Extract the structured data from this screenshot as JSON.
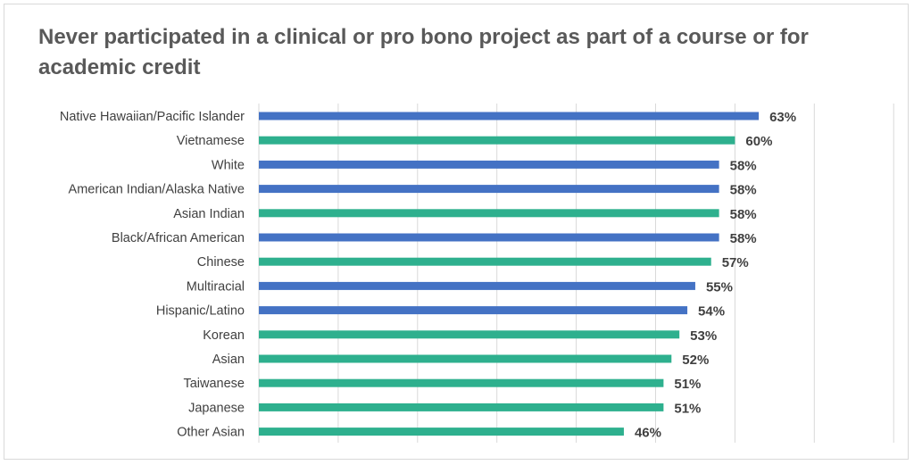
{
  "chart_data": {
    "type": "bar",
    "orientation": "horizontal",
    "title": "Never participated in a clinical or pro bono project as part of a course or for academic credit",
    "categories": [
      "Native Hawaiian/Pacific Islander",
      "Vietnamese",
      "White",
      "American Indian/Alaska Native",
      "Asian Indian",
      "Black/African American",
      "Chinese",
      "Multiracial",
      "Hispanic/Latino",
      "Korean",
      "Asian",
      "Taiwanese",
      "Japanese",
      "Other Asian"
    ],
    "values": [
      63,
      60,
      58,
      58,
      58,
      58,
      57,
      55,
      54,
      53,
      52,
      51,
      51,
      46
    ],
    "value_labels": [
      "63%",
      "60%",
      "58%",
      "58%",
      "58%",
      "58%",
      "57%",
      "55%",
      "54%",
      "53%",
      "52%",
      "51%",
      "51%",
      "46%"
    ],
    "bar_colors": [
      "#4472c4",
      "#2eb08e",
      "#4472c4",
      "#4472c4",
      "#2eb08e",
      "#4472c4",
      "#2eb08e",
      "#4472c4",
      "#4472c4",
      "#2eb08e",
      "#2eb08e",
      "#2eb08e",
      "#2eb08e",
      "#2eb08e"
    ],
    "xlim": [
      0,
      80
    ],
    "grid": true,
    "legend": "none"
  }
}
